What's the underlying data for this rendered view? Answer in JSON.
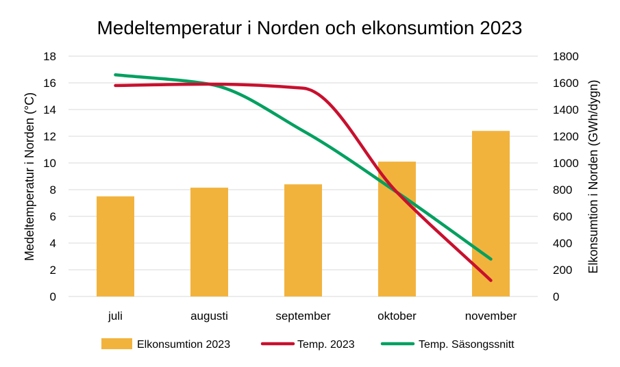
{
  "chart_data": {
    "type": "bar",
    "title": "Medeltemperatur i Norden och elkonsumtion 2023",
    "categories": [
      "juli",
      "augusti",
      "september",
      "oktober",
      "november"
    ],
    "ylabel_left": "Medeltemperatur i Norden (°C)",
    "ylabel_right": "Elkonsumtion i Norden (GWh/dygn)",
    "ylim_left": [
      0,
      18
    ],
    "ylim_right": [
      0,
      1800
    ],
    "yticks_left": [
      "0",
      "2",
      "4",
      "6",
      "8",
      "10",
      "12",
      "14",
      "16",
      "18"
    ],
    "yticks_right": [
      "0",
      "200",
      "400",
      "600",
      "800",
      "1000",
      "1200",
      "1400",
      "1600",
      "1800"
    ],
    "grid": true,
    "legend_position": "bottom",
    "series": [
      {
        "name": "Elkonsumtion 2023",
        "kind": "bar",
        "axis": "right",
        "color": "#F2B33D",
        "values": [
          750,
          815,
          840,
          1010,
          1240
        ]
      },
      {
        "name": "Temp. 2023",
        "kind": "line",
        "axis": "left",
        "color": "#C8102E",
        "values": [
          15.8,
          15.9,
          15.6,
          7.8,
          1.2
        ]
      },
      {
        "name": "Temp. Säsongssnitt",
        "kind": "line",
        "axis": "left",
        "color": "#00A060",
        "values": [
          16.6,
          15.9,
          12.4,
          7.8,
          2.8
        ]
      }
    ]
  }
}
